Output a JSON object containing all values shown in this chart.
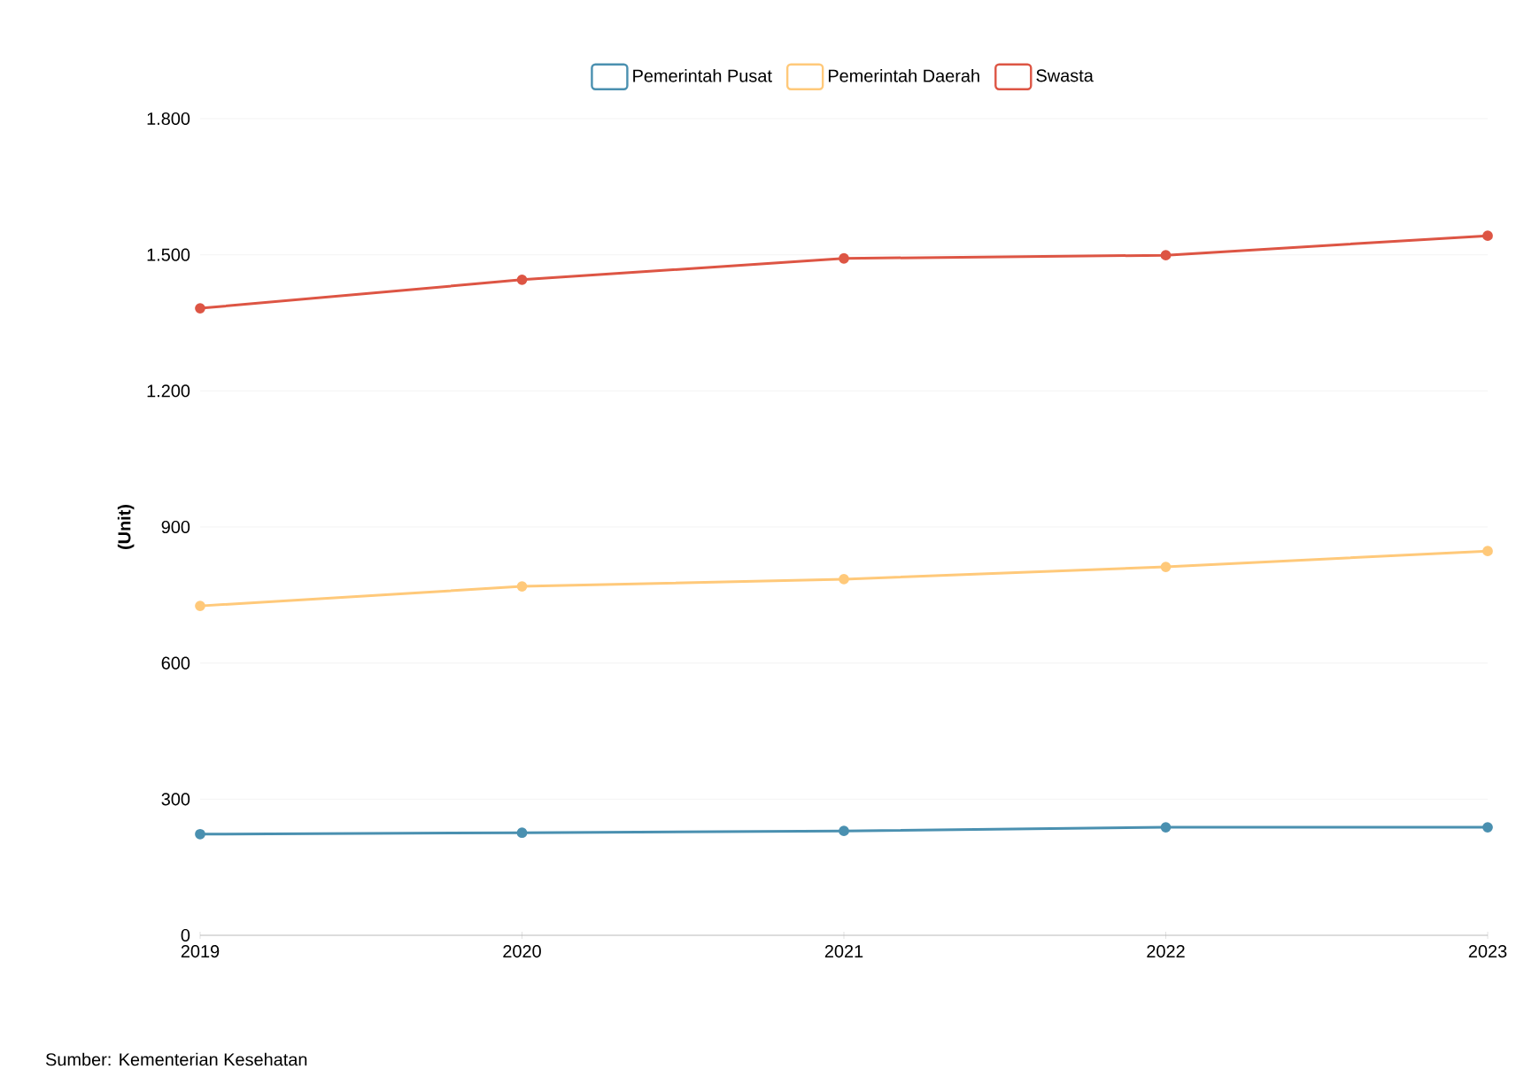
{
  "chart_data": {
    "type": "line",
    "ylabel": "(Unit)",
    "categories": [
      "2019",
      "2020",
      "2021",
      "2022",
      "2023"
    ],
    "series": [
      {
        "name": "Pemerintah Pusat",
        "color": "#4a90b0",
        "values": [
          223,
          226,
          230,
          238,
          238
        ]
      },
      {
        "name": "Pemerintah Daerah",
        "color": "#ffc97a",
        "values": [
          726,
          769,
          785,
          812,
          847
        ]
      },
      {
        "name": "Swasta",
        "color": "#dd5544",
        "values": [
          1382,
          1445,
          1492,
          1499,
          1542
        ]
      }
    ],
    "ylim": [
      0,
      1800
    ],
    "yticks": [
      0,
      300,
      600,
      900,
      {
        "value": 1200,
        "label": "1.200"
      },
      {
        "value": 1500,
        "label": "1.500"
      },
      {
        "value": 1800,
        "label": "1.800"
      }
    ],
    "grid": "y",
    "legend": "top",
    "marker": "circle",
    "line_style": "solid",
    "annotations": [
      "Sumber: Kementerian Kesehatan"
    ]
  }
}
